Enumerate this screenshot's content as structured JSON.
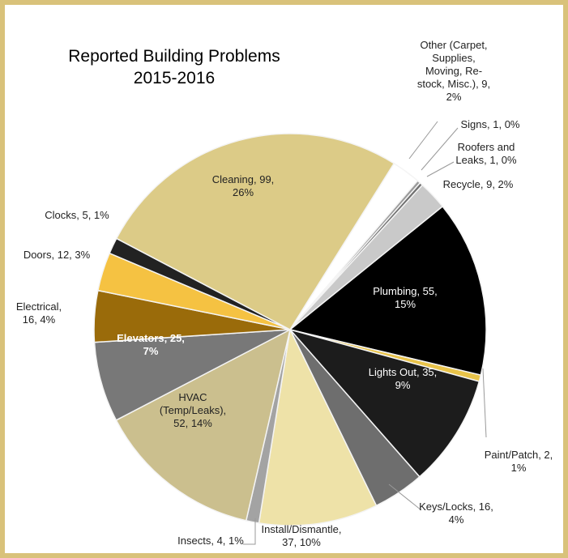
{
  "chart_data": {
    "type": "pie",
    "title": [
      "Reported Building Problems",
      "2015-2016"
    ],
    "values": [
      9,
      1,
      1,
      9,
      55,
      2,
      35,
      16,
      37,
      4,
      52,
      25,
      16,
      12,
      5,
      99
    ],
    "value_labels": [
      [
        "Other (Carpet,",
        "Supplies,",
        "Moving, Re-",
        "stock, Misc.), 9,",
        "2%"
      ],
      [
        "Signs, 1, 0%"
      ],
      [
        "Roofers and",
        "Leaks, 1, 0%"
      ],
      [
        "Recycle, 9, 2%"
      ],
      [
        "Plumbing, 55,",
        "15%"
      ],
      [
        "Paint/Patch, 2,",
        "1%"
      ],
      [
        "Lights Out, 35,",
        "9%"
      ],
      [
        "Keys/Locks, 16,",
        "4%"
      ],
      [
        "Install/Dismantle,",
        "37, 10%"
      ],
      [
        "Insects, 4, 1%"
      ],
      [
        "HVAC",
        "(Temp/Leaks),",
        "52, 14%"
      ],
      [
        "Elevators, 25,",
        "7%"
      ],
      [
        "Electrical,",
        "16, 4%"
      ],
      [
        "Doors, 12, 3%"
      ],
      [
        "Clocks, 5, 1%"
      ],
      [
        "Cleaning, 99,",
        "26%"
      ]
    ],
    "colors": [
      "#ffffff",
      "#9a9a9a",
      "#707070",
      "#c9c9c9",
      "#000000",
      "#e8c34a",
      "#1c1c1c",
      "#6e6e6e",
      "#eee2a8",
      "#a3a3a3",
      "#cbbf8e",
      "#787878",
      "#9a6b0a",
      "#f5c242",
      "#222222",
      "#dccb87"
    ]
  }
}
